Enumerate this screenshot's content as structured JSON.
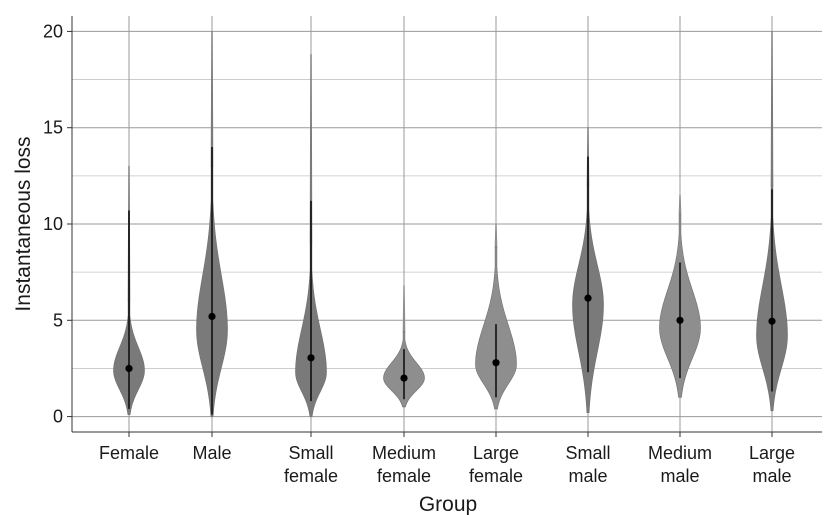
{
  "chart_data": {
    "type": "violin",
    "title": "",
    "xlabel": "Group",
    "ylabel": "Instantaneous loss",
    "ylim": [
      -0.8,
      20.8
    ],
    "yticks": [
      0,
      5,
      10,
      15,
      20
    ],
    "grid": true,
    "colors": {
      "violin": "#8e8e8e",
      "violin_dark": "#7a7a7a",
      "range_line": "#111111",
      "median_point": "#000000"
    },
    "categories": [
      {
        "label_lines": [
          "Female"
        ],
        "median": 2.5,
        "range": [
          0.4,
          10.7
        ],
        "tail_max": 13.0,
        "bulk": [
          0.1,
          6.0
        ],
        "bulk_center": 2.4,
        "style": "dark"
      },
      {
        "label_lines": [
          "Male"
        ],
        "median": 5.2,
        "range": [
          0.1,
          14.0
        ],
        "tail_max": 20.0,
        "bulk": [
          0.0,
          13.0
        ],
        "bulk_center": 4.5,
        "style": "dark"
      },
      {
        "label_lines": [
          "Small",
          "female"
        ],
        "median": 3.05,
        "range": [
          0.8,
          11.2
        ],
        "tail_max": 18.8,
        "bulk": [
          0.0,
          9.0
        ],
        "bulk_center": 2.3,
        "style": "dark"
      },
      {
        "label_lines": [
          "Medium",
          "female"
        ],
        "median": 2.0,
        "range": [
          0.9,
          3.5
        ],
        "tail_max": 6.8,
        "bulk": [
          0.5,
          4.4
        ],
        "bulk_center": 2.0,
        "style": "light"
      },
      {
        "label_lines": [
          "Large",
          "female"
        ],
        "median": 2.8,
        "range": [
          1.0,
          4.8
        ],
        "tail_max": 10.0,
        "bulk": [
          0.4,
          8.8
        ],
        "bulk_center": 2.7,
        "style": "light"
      },
      {
        "label_lines": [
          "Small",
          "male"
        ],
        "median": 6.15,
        "range": [
          2.3,
          13.5
        ],
        "tail_max": 15.0,
        "bulk": [
          0.2,
          12.0
        ],
        "bulk_center": 5.8,
        "style": "dark"
      },
      {
        "label_lines": [
          "Medium",
          "male"
        ],
        "median": 5.0,
        "range": [
          2.0,
          8.0
        ],
        "tail_max": 11.5,
        "bulk": [
          1.0,
          10.5
        ],
        "bulk_center": 4.6,
        "style": "light"
      },
      {
        "label_lines": [
          "Large",
          "male"
        ],
        "median": 4.95,
        "range": [
          1.3,
          11.8
        ],
        "tail_max": 20.0,
        "bulk": [
          0.3,
          12.0
        ],
        "bulk_center": 4.2,
        "style": "dark"
      }
    ]
  }
}
